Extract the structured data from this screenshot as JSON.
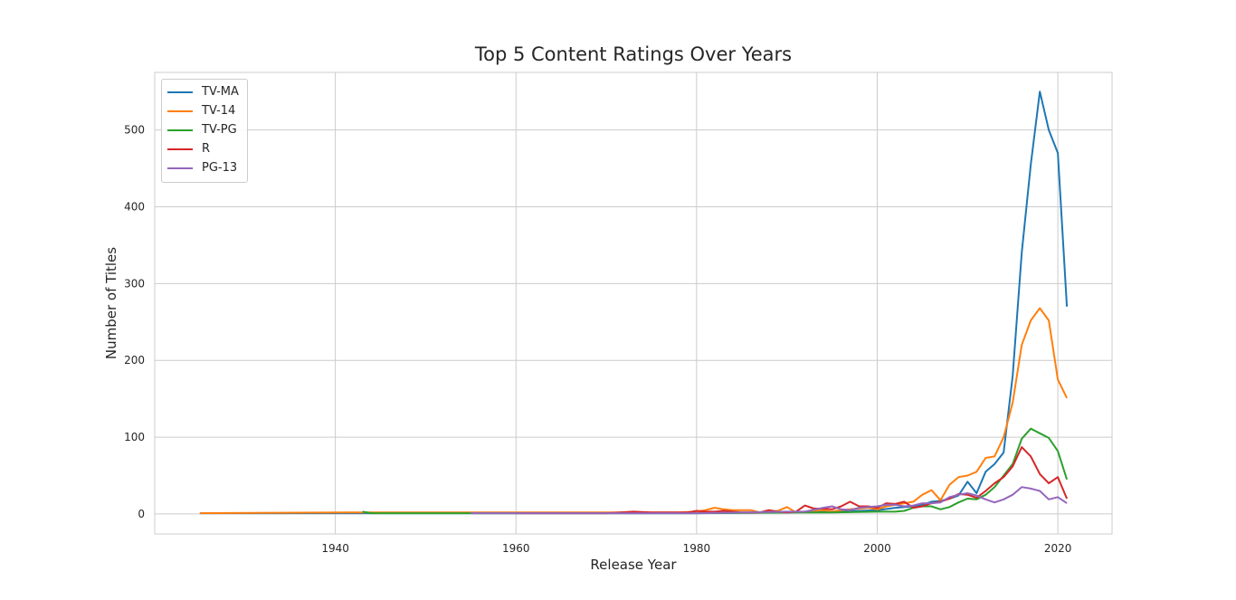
{
  "chart_data": {
    "type": "line",
    "title": "Top 5 Content Ratings Over Years",
    "xlabel": "Release Year",
    "ylabel": "Number of Titles",
    "xlim": [
      1920,
      2026
    ],
    "ylim": [
      -26,
      575
    ],
    "xticks": [
      1940,
      1960,
      1980,
      2000,
      2020
    ],
    "yticks": [
      0,
      100,
      200,
      300,
      400,
      500
    ],
    "grid": true,
    "legend_position": "top-left",
    "series": [
      {
        "name": "TV-MA",
        "color": "#1f77b4",
        "points": [
          [
            1925,
            1
          ],
          [
            1960,
            1
          ],
          [
            1980,
            1
          ],
          [
            1990,
            2
          ],
          [
            1995,
            3
          ],
          [
            1998,
            4
          ],
          [
            2000,
            5
          ],
          [
            2002,
            8
          ],
          [
            2004,
            10
          ],
          [
            2005,
            12
          ],
          [
            2006,
            16
          ],
          [
            2007,
            17
          ],
          [
            2008,
            20
          ],
          [
            2009,
            24
          ],
          [
            2010,
            42
          ],
          [
            2011,
            27
          ],
          [
            2012,
            55
          ],
          [
            2013,
            65
          ],
          [
            2014,
            80
          ],
          [
            2015,
            180
          ],
          [
            2016,
            340
          ],
          [
            2017,
            455
          ],
          [
            2018,
            550
          ],
          [
            2019,
            500
          ],
          [
            2020,
            470
          ],
          [
            2021,
            270
          ]
        ]
      },
      {
        "name": "TV-14",
        "color": "#ff7f0e",
        "points": [
          [
            1925,
            1
          ],
          [
            1943,
            2
          ],
          [
            1950,
            2
          ],
          [
            1960,
            2
          ],
          [
            1970,
            2
          ],
          [
            1978,
            2
          ],
          [
            1980,
            3
          ],
          [
            1981,
            5
          ],
          [
            1982,
            8
          ],
          [
            1983,
            6
          ],
          [
            1984,
            5
          ],
          [
            1985,
            5
          ],
          [
            1986,
            5
          ],
          [
            1987,
            2
          ],
          [
            1988,
            3
          ],
          [
            1989,
            4
          ],
          [
            1990,
            9
          ],
          [
            1991,
            2
          ],
          [
            1992,
            3
          ],
          [
            1993,
            4
          ],
          [
            1994,
            5
          ],
          [
            1995,
            3
          ],
          [
            1996,
            5
          ],
          [
            1997,
            6
          ],
          [
            1998,
            7
          ],
          [
            1999,
            8
          ],
          [
            2000,
            6
          ],
          [
            2001,
            10
          ],
          [
            2002,
            12
          ],
          [
            2003,
            14
          ],
          [
            2004,
            16
          ],
          [
            2005,
            25
          ],
          [
            2006,
            31
          ],
          [
            2007,
            18
          ],
          [
            2008,
            38
          ],
          [
            2009,
            48
          ],
          [
            2010,
            50
          ],
          [
            2011,
            55
          ],
          [
            2012,
            73
          ],
          [
            2013,
            75
          ],
          [
            2014,
            100
          ],
          [
            2015,
            145
          ],
          [
            2016,
            220
          ],
          [
            2017,
            252
          ],
          [
            2018,
            268
          ],
          [
            2019,
            252
          ],
          [
            2020,
            175
          ],
          [
            2021,
            151
          ]
        ]
      },
      {
        "name": "TV-PG",
        "color": "#2ca02c",
        "points": [
          [
            1943,
            3
          ],
          [
            1944,
            1
          ],
          [
            1950,
            1
          ],
          [
            1960,
            1
          ],
          [
            1970,
            1
          ],
          [
            1980,
            1
          ],
          [
            1990,
            2
          ],
          [
            1995,
            2
          ],
          [
            2000,
            3
          ],
          [
            2002,
            3
          ],
          [
            2003,
            4
          ],
          [
            2004,
            8
          ],
          [
            2005,
            10
          ],
          [
            2006,
            10
          ],
          [
            2007,
            6
          ],
          [
            2008,
            9
          ],
          [
            2009,
            15
          ],
          [
            2010,
            20
          ],
          [
            2011,
            19
          ],
          [
            2012,
            25
          ],
          [
            2013,
            35
          ],
          [
            2014,
            50
          ],
          [
            2015,
            65
          ],
          [
            2016,
            98
          ],
          [
            2017,
            111
          ],
          [
            2018,
            105
          ],
          [
            2019,
            99
          ],
          [
            2020,
            82
          ],
          [
            2021,
            45
          ]
        ]
      },
      {
        "name": "R",
        "color": "#d62728",
        "points": [
          [
            1960,
            1
          ],
          [
            1970,
            1
          ],
          [
            1973,
            3
          ],
          [
            1975,
            2
          ],
          [
            1978,
            2
          ],
          [
            1979,
            2
          ],
          [
            1980,
            4
          ],
          [
            1981,
            3
          ],
          [
            1982,
            3
          ],
          [
            1983,
            4
          ],
          [
            1984,
            3
          ],
          [
            1985,
            2
          ],
          [
            1986,
            2
          ],
          [
            1987,
            2
          ],
          [
            1988,
            5
          ],
          [
            1989,
            3
          ],
          [
            1990,
            2
          ],
          [
            1991,
            3
          ],
          [
            1992,
            11
          ],
          [
            1993,
            7
          ],
          [
            1994,
            7
          ],
          [
            1995,
            6
          ],
          [
            1996,
            10
          ],
          [
            1997,
            16
          ],
          [
            1998,
            10
          ],
          [
            1999,
            10
          ],
          [
            2000,
            8
          ],
          [
            2001,
            14
          ],
          [
            2002,
            13
          ],
          [
            2003,
            16
          ],
          [
            2004,
            8
          ],
          [
            2005,
            10
          ],
          [
            2006,
            14
          ],
          [
            2007,
            16
          ],
          [
            2008,
            20
          ],
          [
            2009,
            26
          ],
          [
            2010,
            25
          ],
          [
            2011,
            21
          ],
          [
            2012,
            30
          ],
          [
            2013,
            40
          ],
          [
            2014,
            48
          ],
          [
            2015,
            62
          ],
          [
            2016,
            87
          ],
          [
            2017,
            75
          ],
          [
            2018,
            52
          ],
          [
            2019,
            40
          ],
          [
            2020,
            48
          ],
          [
            2021,
            20
          ]
        ]
      },
      {
        "name": "PG-13",
        "color": "#9467bd",
        "points": [
          [
            1955,
            1
          ],
          [
            1970,
            1
          ],
          [
            1980,
            1
          ],
          [
            1985,
            2
          ],
          [
            1990,
            3
          ],
          [
            1992,
            3
          ],
          [
            1994,
            8
          ],
          [
            1995,
            10
          ],
          [
            1996,
            6
          ],
          [
            1997,
            5
          ],
          [
            1998,
            8
          ],
          [
            1999,
            9
          ],
          [
            2000,
            10
          ],
          [
            2001,
            12
          ],
          [
            2002,
            12
          ],
          [
            2003,
            10
          ],
          [
            2004,
            11
          ],
          [
            2005,
            14
          ],
          [
            2006,
            14
          ],
          [
            2007,
            15
          ],
          [
            2008,
            22
          ],
          [
            2009,
            25
          ],
          [
            2010,
            27
          ],
          [
            2011,
            24
          ],
          [
            2012,
            19
          ],
          [
            2013,
            15
          ],
          [
            2014,
            19
          ],
          [
            2015,
            25
          ],
          [
            2016,
            35
          ],
          [
            2017,
            33
          ],
          [
            2018,
            30
          ],
          [
            2019,
            19
          ],
          [
            2020,
            22
          ],
          [
            2021,
            14
          ]
        ]
      }
    ]
  }
}
